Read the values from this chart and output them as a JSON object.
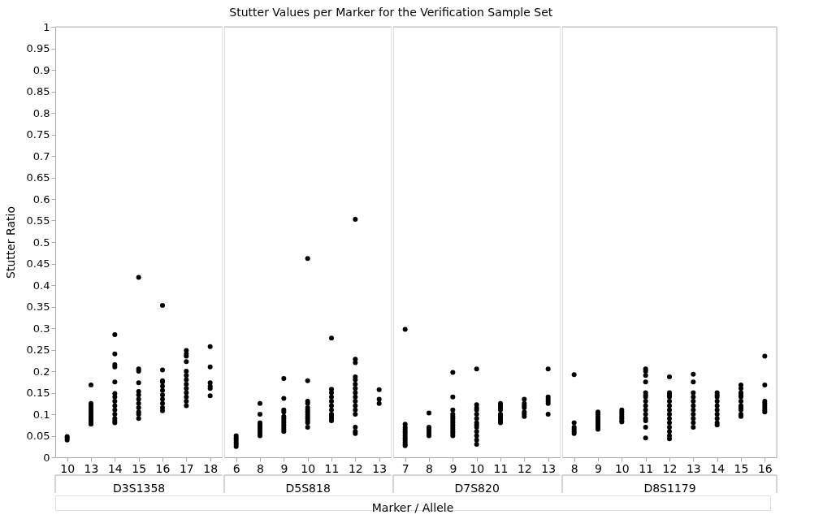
{
  "chart_data": [
    {
      "type": "scatter",
      "ylabel": "Stutter Ratio",
      "xlabel": "D3S1358",
      "annotations": [
        "Stutter Values per Marker for the Verification Sample Set",
        "Marker / Allele"
      ],
      "categories": [
        "10",
        "13",
        "14",
        "15",
        "16",
        "17",
        "18"
      ],
      "marker": "circle",
      "grid": false,
      "ylim": [
        0,
        1
      ],
      "yticks": [
        0,
        0.05,
        0.1,
        0.15,
        0.2,
        0.25,
        0.3,
        0.35,
        0.4,
        0.45,
        0.5,
        0.55,
        0.6,
        0.65,
        0.7,
        0.75,
        0.8,
        0.85,
        0.9,
        0.95,
        1
      ],
      "series": [
        {
          "color": "#000000",
          "x": [
            "10",
            "10",
            "10",
            "13",
            "13",
            "13",
            "13",
            "13",
            "13",
            "13",
            "13",
            "13",
            "13",
            "13",
            "13",
            "14",
            "14",
            "14",
            "14",
            "14",
            "14",
            "14",
            "14",
            "14",
            "14",
            "14",
            "14",
            "14",
            "14",
            "15",
            "15",
            "15",
            "15",
            "15",
            "15",
            "15",
            "15",
            "15",
            "15",
            "15",
            "15",
            "16",
            "16",
            "16",
            "16",
            "16",
            "16",
            "16",
            "16",
            "16",
            "16",
            "16",
            "17",
            "17",
            "17",
            "17",
            "17",
            "17",
            "17",
            "17",
            "17",
            "17",
            "17",
            "17",
            "17",
            "18",
            "18",
            "18",
            "18",
            "18",
            "18"
          ],
          "values": [
            0.04,
            0.045,
            0.048,
            0.168,
            0.125,
            0.12,
            0.115,
            0.11,
            0.105,
            0.1,
            0.095,
            0.09,
            0.085,
            0.08,
            0.077,
            0.285,
            0.24,
            0.215,
            0.21,
            0.175,
            0.148,
            0.14,
            0.13,
            0.12,
            0.11,
            0.1,
            0.09,
            0.085,
            0.08,
            0.418,
            0.205,
            0.2,
            0.173,
            0.153,
            0.145,
            0.135,
            0.125,
            0.115,
            0.105,
            0.1,
            0.09,
            0.353,
            0.203,
            0.178,
            0.175,
            0.165,
            0.155,
            0.145,
            0.135,
            0.125,
            0.115,
            0.108,
            0.248,
            0.24,
            0.235,
            0.222,
            0.2,
            0.19,
            0.18,
            0.17,
            0.16,
            0.15,
            0.14,
            0.13,
            0.12,
            0.257,
            0.21,
            0.173,
            0.165,
            0.16,
            0.143
          ]
        }
      ]
    },
    {
      "type": "scatter",
      "xlabel": "D5S818",
      "categories": [
        "6",
        "8",
        "9",
        "10",
        "11",
        "12",
        "13"
      ],
      "marker": "circle",
      "grid": false,
      "tick_labels": "x",
      "ylim": [
        0,
        1
      ],
      "series": [
        {
          "color": "#000000",
          "x": [
            "6",
            "6",
            "6",
            "6",
            "6",
            "6",
            "8",
            "8",
            "8",
            "8",
            "8",
            "8",
            "8",
            "8",
            "8",
            "9",
            "9",
            "9",
            "9",
            "9",
            "9",
            "9",
            "9",
            "9",
            "9",
            "9",
            "9",
            "10",
            "10",
            "10",
            "10",
            "10",
            "10",
            "10",
            "10",
            "10",
            "10",
            "10",
            "10",
            "10",
            "11",
            "11",
            "11",
            "11",
            "11",
            "11",
            "11",
            "11",
            "11",
            "11",
            "11",
            "12",
            "12",
            "12",
            "12",
            "12",
            "12",
            "12",
            "12",
            "12",
            "12",
            "12",
            "12",
            "12",
            "12",
            "12",
            "12",
            "13",
            "13",
            "13"
          ],
          "values": [
            0.05,
            0.045,
            0.04,
            0.035,
            0.03,
            0.025,
            0.125,
            0.1,
            0.08,
            0.075,
            0.07,
            0.065,
            0.06,
            0.055,
            0.05,
            0.183,
            0.137,
            0.11,
            0.105,
            0.095,
            0.09,
            0.085,
            0.08,
            0.075,
            0.07,
            0.065,
            0.06,
            0.462,
            0.178,
            0.13,
            0.125,
            0.115,
            0.11,
            0.105,
            0.1,
            0.095,
            0.09,
            0.085,
            0.08,
            0.07,
            0.277,
            0.158,
            0.15,
            0.14,
            0.13,
            0.12,
            0.11,
            0.1,
            0.095,
            0.09,
            0.085,
            0.553,
            0.228,
            0.22,
            0.187,
            0.18,
            0.17,
            0.16,
            0.15,
            0.14,
            0.13,
            0.12,
            0.11,
            0.1,
            0.07,
            0.06,
            0.055,
            0.157,
            0.135,
            0.125
          ]
        }
      ]
    },
    {
      "type": "scatter",
      "xlabel": "D7S820",
      "categories": [
        "7",
        "8",
        "9",
        "10",
        "11",
        "12",
        "13"
      ],
      "marker": "circle",
      "grid": false,
      "tick_labels": "x",
      "ylim": [
        0,
        1
      ],
      "series": [
        {
          "color": "#000000",
          "x": [
            "7",
            "7",
            "7",
            "7",
            "7",
            "7",
            "7",
            "7",
            "7",
            "7",
            "7",
            "7",
            "8",
            "8",
            "8",
            "8",
            "8",
            "8",
            "9",
            "9",
            "9",
            "9",
            "9",
            "9",
            "9",
            "9",
            "9",
            "9",
            "9",
            "9",
            "9",
            "9",
            "10",
            "10",
            "10",
            "10",
            "10",
            "10",
            "10",
            "10",
            "10",
            "10",
            "10",
            "10",
            "10",
            "11",
            "11",
            "11",
            "11",
            "11",
            "11",
            "11",
            "11",
            "11",
            "12",
            "12",
            "12",
            "12",
            "12",
            "12",
            "12",
            "13",
            "13",
            "13",
            "13",
            "13",
            "13"
          ],
          "values": [
            0.297,
            0.077,
            0.07,
            0.065,
            0.06,
            0.055,
            0.05,
            0.045,
            0.04,
            0.035,
            0.03,
            0.027,
            0.103,
            0.07,
            0.065,
            0.06,
            0.055,
            0.05,
            0.197,
            0.14,
            0.11,
            0.1,
            0.095,
            0.09,
            0.085,
            0.08,
            0.075,
            0.07,
            0.065,
            0.06,
            0.055,
            0.05,
            0.205,
            0.122,
            0.115,
            0.11,
            0.1,
            0.09,
            0.08,
            0.075,
            0.07,
            0.06,
            0.05,
            0.04,
            0.03,
            0.125,
            0.12,
            0.115,
            0.11,
            0.1,
            0.095,
            0.09,
            0.085,
            0.08,
            0.135,
            0.125,
            0.12,
            0.115,
            0.105,
            0.1,
            0.095,
            0.205,
            0.14,
            0.135,
            0.13,
            0.125,
            0.1
          ]
        }
      ]
    },
    {
      "type": "scatter",
      "xlabel": "D8S1179",
      "categories": [
        "8",
        "9",
        "10",
        "11",
        "12",
        "13",
        "14",
        "15",
        "16"
      ],
      "marker": "circle",
      "grid": false,
      "tick_labels": "x",
      "ylim": [
        0,
        1
      ],
      "series": [
        {
          "color": "#000000",
          "x": [
            "8",
            "8",
            "8",
            "8",
            "8",
            "8",
            "9",
            "9",
            "9",
            "9",
            "9",
            "9",
            "9",
            "9",
            "9",
            "10",
            "10",
            "10",
            "10",
            "10",
            "10",
            "10",
            "11",
            "11",
            "11",
            "11",
            "11",
            "11",
            "11",
            "11",
            "11",
            "11",
            "11",
            "11",
            "11",
            "11",
            "11",
            "12",
            "12",
            "12",
            "12",
            "12",
            "12",
            "12",
            "12",
            "12",
            "12",
            "12",
            "12",
            "12",
            "12",
            "13",
            "13",
            "13",
            "13",
            "13",
            "13",
            "13",
            "13",
            "13",
            "13",
            "13",
            "14",
            "14",
            "14",
            "14",
            "14",
            "14",
            "14",
            "14",
            "14",
            "14",
            "15",
            "15",
            "15",
            "15",
            "15",
            "15",
            "15",
            "15",
            "15",
            "15",
            "15",
            "16",
            "16",
            "16",
            "16",
            "16",
            "16",
            "16",
            "16"
          ],
          "values": [
            0.192,
            0.08,
            0.07,
            0.065,
            0.06,
            0.055,
            0.105,
            0.1,
            0.095,
            0.09,
            0.085,
            0.08,
            0.075,
            0.07,
            0.065,
            0.11,
            0.105,
            0.1,
            0.095,
            0.09,
            0.085,
            0.082,
            0.205,
            0.2,
            0.19,
            0.175,
            0.15,
            0.145,
            0.14,
            0.13,
            0.12,
            0.11,
            0.1,
            0.09,
            0.085,
            0.07,
            0.045,
            0.187,
            0.15,
            0.145,
            0.14,
            0.13,
            0.12,
            0.11,
            0.1,
            0.09,
            0.08,
            0.07,
            0.06,
            0.05,
            0.043,
            0.193,
            0.175,
            0.15,
            0.14,
            0.13,
            0.12,
            0.11,
            0.1,
            0.09,
            0.08,
            0.07,
            0.15,
            0.145,
            0.14,
            0.13,
            0.12,
            0.11,
            0.1,
            0.09,
            0.08,
            0.075,
            0.168,
            0.16,
            0.15,
            0.145,
            0.14,
            0.13,
            0.12,
            0.115,
            0.11,
            0.1,
            0.095,
            0.235,
            0.168,
            0.13,
            0.125,
            0.12,
            0.115,
            0.11,
            0.105
          ]
        }
      ]
    }
  ]
}
